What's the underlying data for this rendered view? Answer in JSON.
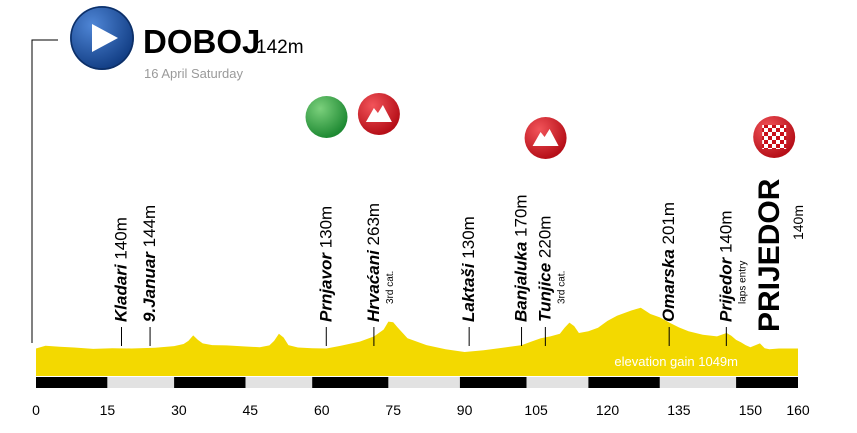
{
  "header": {
    "start_city": "DOBOJ",
    "start_elevation": "142m",
    "date": "16 April Saturday"
  },
  "chart_data": {
    "type": "area",
    "title": "",
    "xlabel": "",
    "ylabel": "",
    "xlim": [
      0,
      160
    ],
    "ylim": [
      0,
      270
    ],
    "ticks": [
      "0",
      "15",
      "30",
      "45",
      "60",
      "75",
      "90",
      "105",
      "120",
      "135",
      "150",
      "160"
    ],
    "tick_values": [
      0,
      15,
      30,
      45,
      60,
      75,
      90,
      105,
      120,
      135,
      150,
      160
    ],
    "elevation_gain_label": "elevation gain 1049m",
    "profile": {
      "x": [
        0,
        2,
        5,
        8,
        12,
        16,
        20,
        25,
        29,
        31,
        32,
        33,
        34,
        35,
        37,
        40,
        44,
        47,
        49,
        50,
        51,
        52,
        53,
        55,
        58,
        61,
        64,
        68,
        71,
        73,
        74,
        75,
        76,
        78,
        82,
        86,
        90,
        94,
        98,
        102,
        104,
        106,
        108,
        110,
        111,
        112,
        113,
        114,
        116,
        118,
        120,
        122,
        125,
        127,
        129,
        131,
        133,
        135,
        137,
        140,
        143,
        145,
        146,
        147,
        148,
        149,
        150,
        152,
        153,
        154,
        156,
        158,
        160
      ],
      "y": [
        140,
        148,
        145,
        143,
        139,
        141,
        140,
        142,
        147,
        153,
        162,
        178,
        165,
        155,
        150,
        149,
        146,
        144,
        149,
        162,
        183,
        172,
        150,
        143,
        141,
        140,
        148,
        160,
        175,
        195,
        218,
        216,
        200,
        170,
        150,
        138,
        130,
        135,
        142,
        150,
        160,
        170,
        175,
        183,
        200,
        215,
        205,
        185,
        190,
        200,
        220,
        235,
        250,
        258,
        240,
        230,
        215,
        201,
        190,
        180,
        175,
        185,
        177,
        165,
        158,
        150,
        144,
        155,
        141,
        138,
        140,
        140,
        140
      ]
    },
    "road_segments": [
      {
        "from": 0,
        "to": 15,
        "color": "#000000"
      },
      {
        "from": 15,
        "to": 29,
        "color": "#e2e2e2"
      },
      {
        "from": 29,
        "to": 44,
        "color": "#000000"
      },
      {
        "from": 44,
        "to": 58,
        "color": "#e2e2e2"
      },
      {
        "from": 58,
        "to": 74,
        "color": "#000000"
      },
      {
        "from": 74,
        "to": 89,
        "color": "#e2e2e2"
      },
      {
        "from": 89,
        "to": 103,
        "color": "#000000"
      },
      {
        "from": 103,
        "to": 116,
        "color": "#e2e2e2"
      },
      {
        "from": 116,
        "to": 131,
        "color": "#000000"
      },
      {
        "from": 131,
        "to": 147,
        "color": "#e2e2e2"
      },
      {
        "from": 147,
        "to": 160,
        "color": "#000000"
      }
    ],
    "locations": [
      {
        "name": "Kladari",
        "elev": "140m",
        "km": 19,
        "bold": false
      },
      {
        "name": "9.Januar",
        "elev": "144m",
        "km": 25,
        "bold": false
      },
      {
        "name": "Prnjavor",
        "elev": "130m",
        "km": 62,
        "bold": false
      },
      {
        "name": "Hrvaćani",
        "elev": "263m",
        "km": 72,
        "bold": false,
        "sub": "3rd cat."
      },
      {
        "name": "Laktaši",
        "elev": "130m",
        "km": 92,
        "bold": false
      },
      {
        "name": "Banjaluka",
        "elev": "170m",
        "km": 103,
        "bold": false
      },
      {
        "name": "Tunjice",
        "elev": "220m",
        "km": 108,
        "bold": false,
        "sub": "3rd cat."
      },
      {
        "name": "Omarska",
        "elev": "201m",
        "km": 134,
        "bold": false
      },
      {
        "name": "Prijedor",
        "elev": "140m",
        "km": 146,
        "bold": false,
        "sub": "laps entry"
      },
      {
        "name": "PRIJEDOR",
        "elev": "140m",
        "km": 156,
        "bold": true
      }
    ],
    "markers": [
      {
        "type": "sprint-green",
        "km": 61
      },
      {
        "type": "climb",
        "km": 72
      },
      {
        "type": "climb",
        "km": 107
      },
      {
        "type": "finish",
        "km": 155
      }
    ],
    "colors": {
      "profile_fill": "#f3d900",
      "start_icon": "#1f56a8",
      "climb_icon": "#e51b24",
      "sprint_icon": "#3aa14a",
      "gain_text": "#ffffff"
    }
  }
}
